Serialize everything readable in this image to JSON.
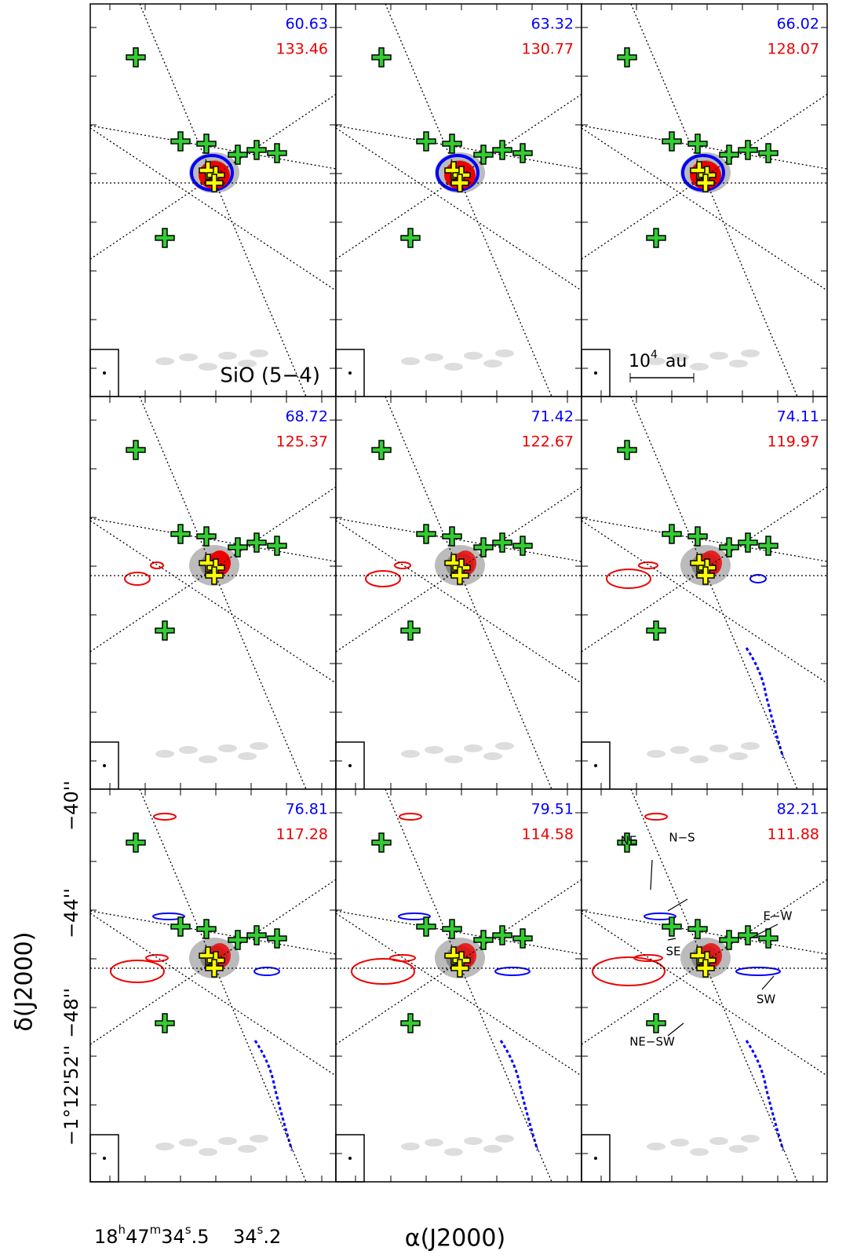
{
  "panels": [
    {
      "blue_velocity": 60.63,
      "red_velocity": 133.46
    },
    {
      "blue_velocity": 63.32,
      "red_velocity": 130.77
    },
    {
      "blue_velocity": 66.02,
      "red_velocity": 128.07
    },
    {
      "blue_velocity": 68.72,
      "red_velocity": 125.37
    },
    {
      "blue_velocity": 71.42,
      "red_velocity": 122.67
    },
    {
      "blue_velocity": 74.11,
      "red_velocity": 119.97
    },
    {
      "blue_velocity": 76.81,
      "red_velocity": 117.28
    },
    {
      "blue_velocity": 79.51,
      "red_velocity": 114.58
    },
    {
      "blue_velocity": 82.21,
      "red_velocity": 111.88
    }
  ],
  "line_label": "SiO (5−4)",
  "scale_bar": {
    "base": "10",
    "exponent": "4",
    "unit": "au"
  },
  "outflow_labels": [
    "N−S",
    "NE",
    "E−W",
    "SE",
    "SW",
    "NE−SW"
  ],
  "y_tick_labels": [
    "−40''",
    "−44''",
    "−48''",
    "−1°12'52''"
  ],
  "y_axis_label": "δ(J2000)",
  "x_tick_labels": [
    [
      "18",
      "h",
      "47",
      "m",
      "34",
      "s",
      ".5"
    ],
    [
      "34",
      "s",
      ".2"
    ]
  ],
  "x_axis_label": "α(J2000)"
}
